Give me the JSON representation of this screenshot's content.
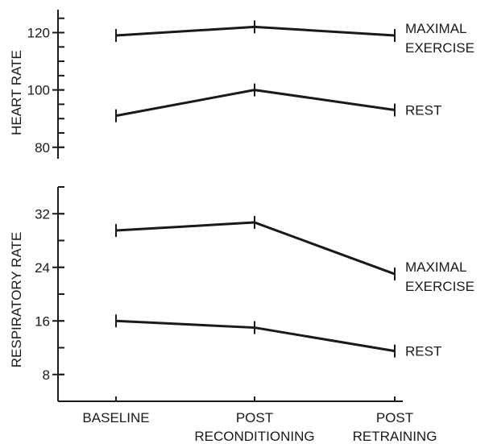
{
  "chart_data": [
    {
      "type": "line",
      "ylabel": "HEART RATE",
      "categories": [
        "BASELINE",
        "POST RECONDITIONING",
        "POST RETRAINING"
      ],
      "yticks": [
        80,
        100,
        120
      ],
      "ylim": [
        76,
        128
      ],
      "series": [
        {
          "name": "MAXIMAL EXERCISE",
          "values": [
            119,
            122,
            119
          ]
        },
        {
          "name": "REST",
          "values": [
            91,
            100,
            93
          ]
        }
      ]
    },
    {
      "type": "line",
      "ylabel": "RESPIRATORY RATE",
      "categories": [
        "BASELINE",
        "POST RECONDITIONING",
        "POST RETRAINING"
      ],
      "yticks": [
        8,
        16,
        24,
        32
      ],
      "ylim": [
        4,
        36
      ],
      "series": [
        {
          "name": "MAXIMAL EXERCISE",
          "values": [
            29.5,
            30.7,
            23
          ]
        },
        {
          "name": "REST",
          "values": [
            16,
            15,
            11.5
          ]
        }
      ]
    }
  ],
  "x_axis": {
    "categories": [
      {
        "line1": "BASELINE",
        "line2": ""
      },
      {
        "line1": "POST",
        "line2": "RECONDITIONING"
      },
      {
        "line1": "POST",
        "line2": "RETRAINING"
      }
    ]
  },
  "colors": {
    "ink": "#1a1a1a",
    "background": "#ffffff"
  }
}
